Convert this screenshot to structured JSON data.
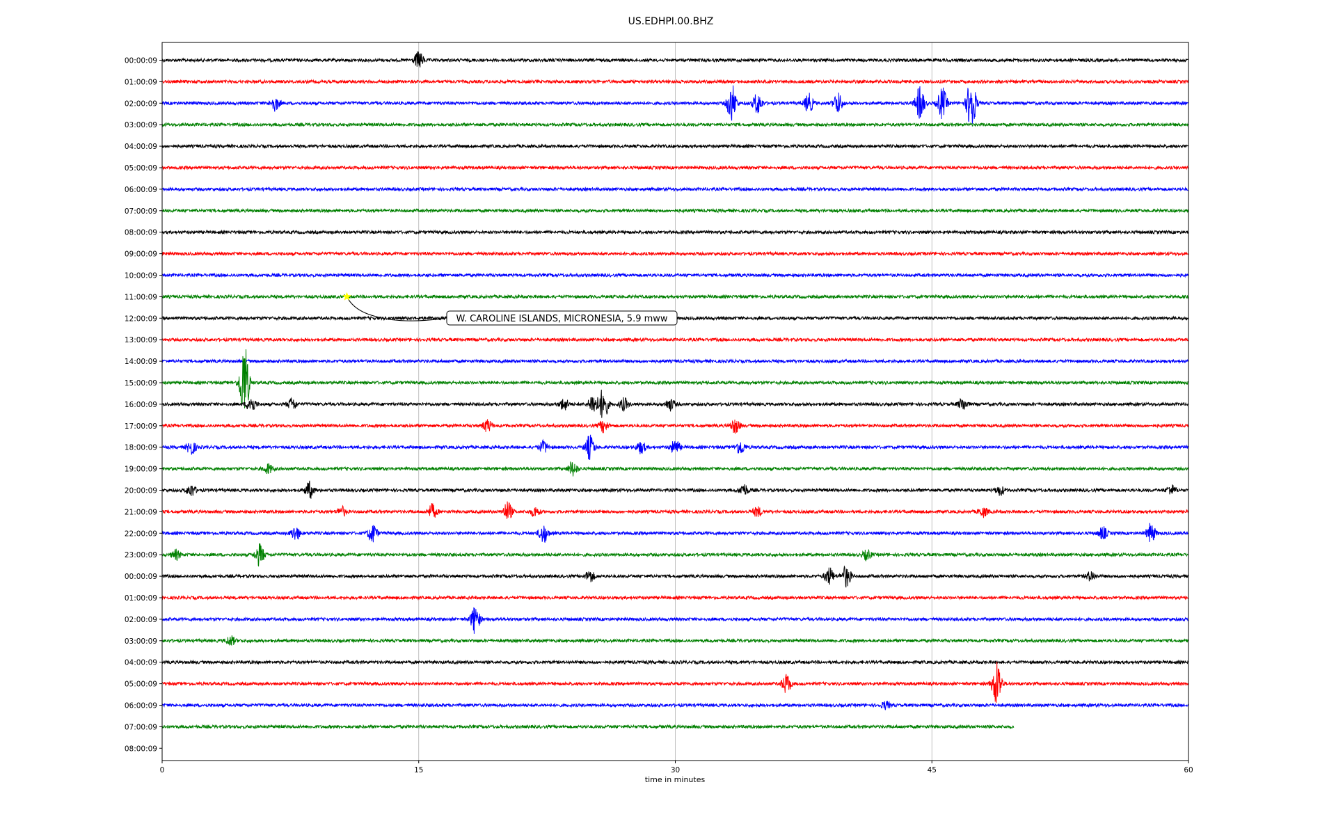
{
  "chart_data": {
    "type": "line",
    "chart_kind": "seismic-helicorder",
    "title": "US.EDHPI.00.BHZ",
    "xlabel": "time in minutes",
    "ylabel": "",
    "xlim": [
      0,
      60
    ],
    "x_ticks": [
      "0",
      "15",
      "30",
      "45",
      "60"
    ],
    "x_tick_values": [
      0,
      15,
      30,
      45,
      60
    ],
    "grid": "vertical lines at 15, 30, 45",
    "row_labels": [
      "00:00:09",
      "01:00:09",
      "02:00:09",
      "03:00:09",
      "04:00:09",
      "05:00:09",
      "06:00:09",
      "07:00:09",
      "08:00:09",
      "09:00:09",
      "10:00:09",
      "11:00:09",
      "12:00:09",
      "13:00:09",
      "14:00:09",
      "15:00:09",
      "16:00:09",
      "17:00:09",
      "18:00:09",
      "19:00:09",
      "20:00:09",
      "21:00:09",
      "22:00:09",
      "23:00:09",
      "00:00:09",
      "01:00:09",
      "02:00:09",
      "03:00:09",
      "04:00:09",
      "05:00:09",
      "06:00:09",
      "07:00:09",
      "08:00:09"
    ],
    "color_cycle": [
      "#000000",
      "#ff0000",
      "#0000ff",
      "#008000"
    ],
    "last_trace_end_minute": 49.8,
    "events": [
      {
        "row": 0,
        "minute": 15.0,
        "amplitude": 0.7
      },
      {
        "row": 2,
        "minute": 6.6,
        "amplitude": 0.6
      },
      {
        "row": 2,
        "minute": 33.3,
        "amplitude": 1.6
      },
      {
        "row": 2,
        "minute": 34.8,
        "amplitude": 0.9
      },
      {
        "row": 2,
        "minute": 37.8,
        "amplitude": 0.8
      },
      {
        "row": 2,
        "minute": 39.5,
        "amplitude": 0.9
      },
      {
        "row": 2,
        "minute": 44.3,
        "amplitude": 1.4
      },
      {
        "row": 2,
        "minute": 45.6,
        "amplitude": 1.3
      },
      {
        "row": 2,
        "minute": 47.3,
        "amplitude": 2.4
      },
      {
        "row": 15,
        "minute": 4.8,
        "amplitude": 3.5
      },
      {
        "row": 16,
        "minute": 5.2,
        "amplitude": 0.7
      },
      {
        "row": 16,
        "minute": 7.6,
        "amplitude": 0.5
      },
      {
        "row": 16,
        "minute": 23.5,
        "amplitude": 0.5
      },
      {
        "row": 16,
        "minute": 25.2,
        "amplitude": 0.9
      },
      {
        "row": 16,
        "minute": 25.8,
        "amplitude": 1.4
      },
      {
        "row": 16,
        "minute": 27.0,
        "amplitude": 0.5
      },
      {
        "row": 16,
        "minute": 29.7,
        "amplitude": 0.5
      },
      {
        "row": 16,
        "minute": 46.8,
        "amplitude": 0.5
      },
      {
        "row": 17,
        "minute": 19.0,
        "amplitude": 0.5
      },
      {
        "row": 17,
        "minute": 25.8,
        "amplitude": 0.5
      },
      {
        "row": 17,
        "minute": 33.5,
        "amplitude": 0.6
      },
      {
        "row": 18,
        "minute": 1.7,
        "amplitude": 0.6
      },
      {
        "row": 18,
        "minute": 22.3,
        "amplitude": 0.5
      },
      {
        "row": 18,
        "minute": 25.0,
        "amplitude": 1.0
      },
      {
        "row": 18,
        "minute": 28.0,
        "amplitude": 0.5
      },
      {
        "row": 18,
        "minute": 30.0,
        "amplitude": 0.6
      },
      {
        "row": 18,
        "minute": 33.8,
        "amplitude": 0.6
      },
      {
        "row": 19,
        "minute": 6.2,
        "amplitude": 0.4
      },
      {
        "row": 19,
        "minute": 24.0,
        "amplitude": 0.6
      },
      {
        "row": 20,
        "minute": 1.7,
        "amplitude": 0.5
      },
      {
        "row": 20,
        "minute": 8.6,
        "amplitude": 0.7
      },
      {
        "row": 20,
        "minute": 34.0,
        "amplitude": 0.5
      },
      {
        "row": 20,
        "minute": 49.0,
        "amplitude": 0.4
      },
      {
        "row": 20,
        "minute": 59.0,
        "amplitude": 0.4
      },
      {
        "row": 21,
        "minute": 10.5,
        "amplitude": 0.4
      },
      {
        "row": 21,
        "minute": 15.8,
        "amplitude": 0.6
      },
      {
        "row": 21,
        "minute": 20.2,
        "amplitude": 0.8
      },
      {
        "row": 21,
        "minute": 21.8,
        "amplitude": 0.4
      },
      {
        "row": 21,
        "minute": 34.8,
        "amplitude": 0.4
      },
      {
        "row": 21,
        "minute": 48.0,
        "amplitude": 0.4
      },
      {
        "row": 22,
        "minute": 7.8,
        "amplitude": 0.6
      },
      {
        "row": 22,
        "minute": 12.3,
        "amplitude": 0.8
      },
      {
        "row": 22,
        "minute": 22.3,
        "amplitude": 0.8
      },
      {
        "row": 22,
        "minute": 55.0,
        "amplitude": 0.5
      },
      {
        "row": 22,
        "minute": 57.8,
        "amplitude": 0.8
      },
      {
        "row": 23,
        "minute": 0.8,
        "amplitude": 0.4
      },
      {
        "row": 23,
        "minute": 5.7,
        "amplitude": 0.9
      },
      {
        "row": 23,
        "minute": 41.2,
        "amplitude": 0.4
      },
      {
        "row": 24,
        "minute": 25.0,
        "amplitude": 0.5
      },
      {
        "row": 24,
        "minute": 39.0,
        "amplitude": 0.7
      },
      {
        "row": 24,
        "minute": 40.0,
        "amplitude": 0.9
      },
      {
        "row": 24,
        "minute": 54.3,
        "amplitude": 0.4
      },
      {
        "row": 26,
        "minute": 18.3,
        "amplitude": 1.2
      },
      {
        "row": 27,
        "minute": 4.0,
        "amplitude": 0.4
      },
      {
        "row": 29,
        "minute": 36.5,
        "amplitude": 0.8
      },
      {
        "row": 29,
        "minute": 48.8,
        "amplitude": 2.0
      },
      {
        "row": 30,
        "minute": 42.3,
        "amplitude": 0.3
      }
    ],
    "annotations": [
      {
        "text": "W. CAROLINE ISLANDS, MICRONESIA, 5.9 mww",
        "row": 11,
        "minute": 10.8,
        "marker": "star",
        "marker_color": "#ffff00"
      }
    ]
  }
}
